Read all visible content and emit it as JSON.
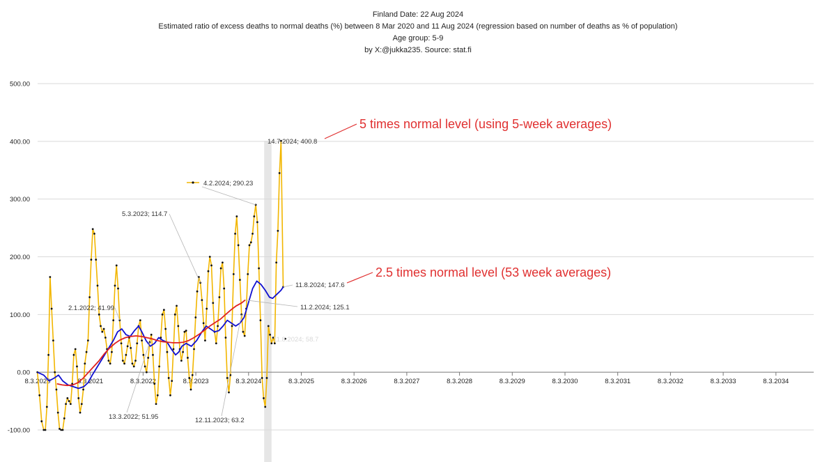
{
  "chart_data": {
    "type": "line",
    "title_lines": [
      "Finland  Date: 22 Aug 2024",
      "Estimated ratio of excess deaths to normal deaths (%) between 8 Mar 2020 and 11 Aug 2024 (regression based on number of deaths as % of population)",
      "Age group: 5-9",
      "by X:@jukka235. Source: stat.fi"
    ],
    "xlabel": "",
    "ylabel": "",
    "ylim": [
      -100,
      500
    ],
    "y_ticks": [
      "-100.00",
      "0.00",
      "100.00",
      "200.00",
      "300.00",
      "400.00",
      "500.00"
    ],
    "x_range": [
      2020.184,
      2034.9
    ],
    "x_ticks": [
      {
        "label": "8.3.2020",
        "x": 2020.184
      },
      {
        "label": "8.3.2021",
        "x": 2021.184
      },
      {
        "label": "8.3.2022",
        "x": 2022.184
      },
      {
        "label": "8.3.2023",
        "x": 2023.184
      },
      {
        "label": "8.3.2024",
        "x": 2024.184
      },
      {
        "label": "8.3.2025",
        "x": 2025.184
      },
      {
        "label": "8.3.2026",
        "x": 2026.184
      },
      {
        "label": "8.3.2027",
        "x": 2027.184
      },
      {
        "label": "8.3.2028",
        "x": 2028.184
      },
      {
        "label": "8.3.2029",
        "x": 2029.184
      },
      {
        "label": "8.3.2030",
        "x": 2030.184
      },
      {
        "label": "8.3.2031",
        "x": 2031.184
      },
      {
        "label": "8.3.2032",
        "x": 2032.184
      },
      {
        "label": "8.3.2033",
        "x": 2033.184
      },
      {
        "label": "8.3.2034",
        "x": 2034.184
      }
    ],
    "grid": "horizontal",
    "highlight_band": {
      "x0": 2024.48,
      "x1": 2024.62
    },
    "series": [
      {
        "color": "#f2b600",
        "style": "line-with-markers",
        "points": [
          [
            2020.18,
            0
          ],
          [
            2020.22,
            -40
          ],
          [
            2020.26,
            -85
          ],
          [
            2020.3,
            -100
          ],
          [
            2020.33,
            -100
          ],
          [
            2020.36,
            -60
          ],
          [
            2020.39,
            30
          ],
          [
            2020.42,
            165
          ],
          [
            2020.45,
            110
          ],
          [
            2020.48,
            55
          ],
          [
            2020.51,
            0
          ],
          [
            2020.54,
            -30
          ],
          [
            2020.57,
            -70
          ],
          [
            2020.6,
            -98
          ],
          [
            2020.63,
            -100
          ],
          [
            2020.66,
            -100
          ],
          [
            2020.69,
            -80
          ],
          [
            2020.72,
            -55
          ],
          [
            2020.75,
            -45
          ],
          [
            2020.78,
            -50
          ],
          [
            2020.81,
            -55
          ],
          [
            2020.84,
            -20
          ],
          [
            2020.87,
            30
          ],
          [
            2020.9,
            40
          ],
          [
            2020.93,
            10
          ],
          [
            2020.96,
            -45
          ],
          [
            2020.99,
            -70
          ],
          [
            2021.02,
            -55
          ],
          [
            2021.05,
            -30
          ],
          [
            2021.08,
            15
          ],
          [
            2021.11,
            35
          ],
          [
            2021.14,
            55
          ],
          [
            2021.17,
            130
          ],
          [
            2021.2,
            195
          ],
          [
            2021.23,
            248
          ],
          [
            2021.26,
            240
          ],
          [
            2021.29,
            195
          ],
          [
            2021.32,
            150
          ],
          [
            2021.35,
            100
          ],
          [
            2021.38,
            80
          ],
          [
            2021.41,
            70
          ],
          [
            2021.44,
            75
          ],
          [
            2021.47,
            60
          ],
          [
            2021.5,
            40
          ],
          [
            2021.53,
            20
          ],
          [
            2021.56,
            15
          ],
          [
            2021.59,
            35
          ],
          [
            2021.62,
            90
          ],
          [
            2021.65,
            150
          ],
          [
            2021.68,
            185
          ],
          [
            2021.71,
            145
          ],
          [
            2021.74,
            90
          ],
          [
            2021.77,
            50
          ],
          [
            2021.8,
            20
          ],
          [
            2021.83,
            15
          ],
          [
            2021.86,
            30
          ],
          [
            2021.89,
            45
          ],
          [
            2021.92,
            60
          ],
          [
            2021.95,
            42
          ],
          [
            2021.98,
            15
          ],
          [
            2022.01,
            10
          ],
          [
            2022.04,
            20
          ],
          [
            2022.07,
            50
          ],
          [
            2022.1,
            80
          ],
          [
            2022.13,
            90
          ],
          [
            2022.16,
            55
          ],
          [
            2022.19,
            30
          ],
          [
            2022.22,
            10
          ],
          [
            2022.25,
            0
          ],
          [
            2022.28,
            25
          ],
          [
            2022.31,
            52
          ],
          [
            2022.34,
            65
          ],
          [
            2022.37,
            30
          ],
          [
            2022.4,
            -20
          ],
          [
            2022.43,
            -55
          ],
          [
            2022.46,
            -40
          ],
          [
            2022.49,
            10
          ],
          [
            2022.52,
            60
          ],
          [
            2022.55,
            100
          ],
          [
            2022.58,
            108
          ],
          [
            2022.61,
            75
          ],
          [
            2022.64,
            35
          ],
          [
            2022.67,
            -10
          ],
          [
            2022.7,
            -40
          ],
          [
            2022.73,
            -15
          ],
          [
            2022.76,
            40
          ],
          [
            2022.79,
            100
          ],
          [
            2022.82,
            115
          ],
          [
            2022.85,
            80
          ],
          [
            2022.88,
            40
          ],
          [
            2022.91,
            20
          ],
          [
            2022.94,
            35
          ],
          [
            2022.97,
            70
          ],
          [
            2023.0,
            72
          ],
          [
            2023.03,
            25
          ],
          [
            2023.06,
            -10
          ],
          [
            2023.09,
            -30
          ],
          [
            2023.12,
            -5
          ],
          [
            2023.15,
            40
          ],
          [
            2023.18,
            95
          ],
          [
            2023.21,
            140
          ],
          [
            2023.24,
            165
          ],
          [
            2023.27,
            155
          ],
          [
            2023.3,
            125
          ],
          [
            2023.33,
            85
          ],
          [
            2023.36,
            55
          ],
          [
            2023.39,
            110
          ],
          [
            2023.42,
            175
          ],
          [
            2023.45,
            200
          ],
          [
            2023.48,
            185
          ],
          [
            2023.51,
            120
          ],
          [
            2023.54,
            70
          ],
          [
            2023.57,
            50
          ],
          [
            2023.6,
            80
          ],
          [
            2023.63,
            130
          ],
          [
            2023.66,
            180
          ],
          [
            2023.69,
            190
          ],
          [
            2023.72,
            145
          ],
          [
            2023.75,
            60
          ],
          [
            2023.78,
            -10
          ],
          [
            2023.81,
            -35
          ],
          [
            2023.84,
            -5
          ],
          [
            2023.87,
            80
          ],
          [
            2023.9,
            170
          ],
          [
            2023.93,
            240
          ],
          [
            2023.96,
            270
          ],
          [
            2023.99,
            220
          ],
          [
            2024.02,
            160
          ],
          [
            2024.05,
            100
          ],
          [
            2024.08,
            70
          ],
          [
            2024.11,
            63
          ],
          [
            2024.14,
            110
          ],
          [
            2024.17,
            170
          ],
          [
            2024.2,
            220
          ],
          [
            2024.23,
            225
          ],
          [
            2024.26,
            240
          ],
          [
            2024.29,
            270
          ],
          [
            2024.32,
            290
          ],
          [
            2024.35,
            260
          ],
          [
            2024.38,
            180
          ],
          [
            2024.41,
            90
          ],
          [
            2024.44,
            -10
          ],
          [
            2024.47,
            -45
          ],
          [
            2024.5,
            -60
          ],
          [
            2024.53,
            -10
          ],
          [
            2024.56,
            80
          ],
          [
            2024.59,
            65
          ],
          [
            2024.62,
            50
          ],
          [
            2024.65,
            60
          ],
          [
            2024.68,
            50
          ],
          [
            2024.71,
            190
          ],
          [
            2024.74,
            245
          ],
          [
            2024.77,
            345
          ],
          [
            2024.8,
            400.8
          ],
          [
            2024.84,
            147.6
          ]
        ]
      },
      {
        "color": "#1010d0",
        "style": "line",
        "points": [
          [
            2020.18,
            0
          ],
          [
            2020.3,
            -5
          ],
          [
            2020.4,
            -15
          ],
          [
            2020.5,
            -10
          ],
          [
            2020.58,
            -5
          ],
          [
            2020.66,
            -15
          ],
          [
            2020.76,
            -22
          ],
          [
            2020.86,
            -25
          ],
          [
            2020.96,
            -28
          ],
          [
            2021.06,
            -25
          ],
          [
            2021.14,
            -18
          ],
          [
            2021.22,
            -5
          ],
          [
            2021.32,
            10
          ],
          [
            2021.42,
            25
          ],
          [
            2021.52,
            40
          ],
          [
            2021.62,
            55
          ],
          [
            2021.7,
            70
          ],
          [
            2021.78,
            75
          ],
          [
            2021.86,
            65
          ],
          [
            2021.94,
            62
          ],
          [
            2022.02,
            72
          ],
          [
            2022.1,
            80
          ],
          [
            2022.16,
            70
          ],
          [
            2022.24,
            55
          ],
          [
            2022.32,
            45
          ],
          [
            2022.4,
            50
          ],
          [
            2022.48,
            60
          ],
          [
            2022.56,
            55
          ],
          [
            2022.64,
            52
          ],
          [
            2022.72,
            40
          ],
          [
            2022.8,
            30
          ],
          [
            2022.86,
            35
          ],
          [
            2022.92,
            45
          ],
          [
            2023.0,
            50
          ],
          [
            2023.1,
            45
          ],
          [
            2023.2,
            55
          ],
          [
            2023.3,
            70
          ],
          [
            2023.38,
            80
          ],
          [
            2023.46,
            75
          ],
          [
            2023.54,
            70
          ],
          [
            2023.62,
            72
          ],
          [
            2023.7,
            80
          ],
          [
            2023.78,
            90
          ],
          [
            2023.86,
            85
          ],
          [
            2023.94,
            80
          ],
          [
            2024.02,
            85
          ],
          [
            2024.1,
            95
          ],
          [
            2024.18,
            120
          ],
          [
            2024.26,
            145
          ],
          [
            2024.34,
            158
          ],
          [
            2024.42,
            152
          ],
          [
            2024.5,
            142
          ],
          [
            2024.58,
            130
          ],
          [
            2024.64,
            128
          ],
          [
            2024.72,
            135
          ],
          [
            2024.8,
            142
          ],
          [
            2024.84,
            147.6
          ]
        ]
      },
      {
        "color": "#e02020",
        "style": "line",
        "points": [
          [
            2020.55,
            -20
          ],
          [
            2020.65,
            -22
          ],
          [
            2020.75,
            -23
          ],
          [
            2020.85,
            -22
          ],
          [
            2020.95,
            -18
          ],
          [
            2021.05,
            -10
          ],
          [
            2021.15,
            0
          ],
          [
            2021.25,
            10
          ],
          [
            2021.35,
            20
          ],
          [
            2021.45,
            32
          ],
          [
            2021.55,
            42
          ],
          [
            2021.65,
            50
          ],
          [
            2021.75,
            56
          ],
          [
            2021.85,
            60
          ],
          [
            2021.95,
            62
          ],
          [
            2022.05,
            63
          ],
          [
            2022.15,
            62
          ],
          [
            2022.25,
            60
          ],
          [
            2022.35,
            58
          ],
          [
            2022.45,
            55
          ],
          [
            2022.55,
            53
          ],
          [
            2022.65,
            52
          ],
          [
            2022.75,
            51
          ],
          [
            2022.85,
            51
          ],
          [
            2022.95,
            52
          ],
          [
            2023.05,
            55
          ],
          [
            2023.15,
            60
          ],
          [
            2023.25,
            66
          ],
          [
            2023.35,
            73
          ],
          [
            2023.45,
            80
          ],
          [
            2023.55,
            86
          ],
          [
            2023.65,
            92
          ],
          [
            2023.75,
            100
          ],
          [
            2023.85,
            108
          ],
          [
            2023.95,
            115
          ],
          [
            2024.05,
            120
          ],
          [
            2024.12,
            125.1
          ]
        ]
      }
    ],
    "special_points": [
      {
        "x": 2024.88,
        "y": 58
      }
    ],
    "annotations": [
      {
        "text": "14.7.2024; 400.8"
      },
      {
        "text": "4.2.2024; 290.23"
      },
      {
        "text": "5.3.2023; 114.7"
      },
      {
        "text": "2.1.2022; 41.99"
      },
      {
        "text": "13.3.2022; 51.95"
      },
      {
        "text": "12.11.2023; 63.2"
      },
      {
        "text": "11.8.2024; 147.6"
      },
      {
        "text": "11.2.2024; 125.1"
      }
    ],
    "faded_label": "11.8.2024; 58.7",
    "callouts": [
      {
        "text": "5 times normal level (using 5-week averages)"
      },
      {
        "text": "2.5 times normal level (53 week averages)"
      }
    ]
  }
}
